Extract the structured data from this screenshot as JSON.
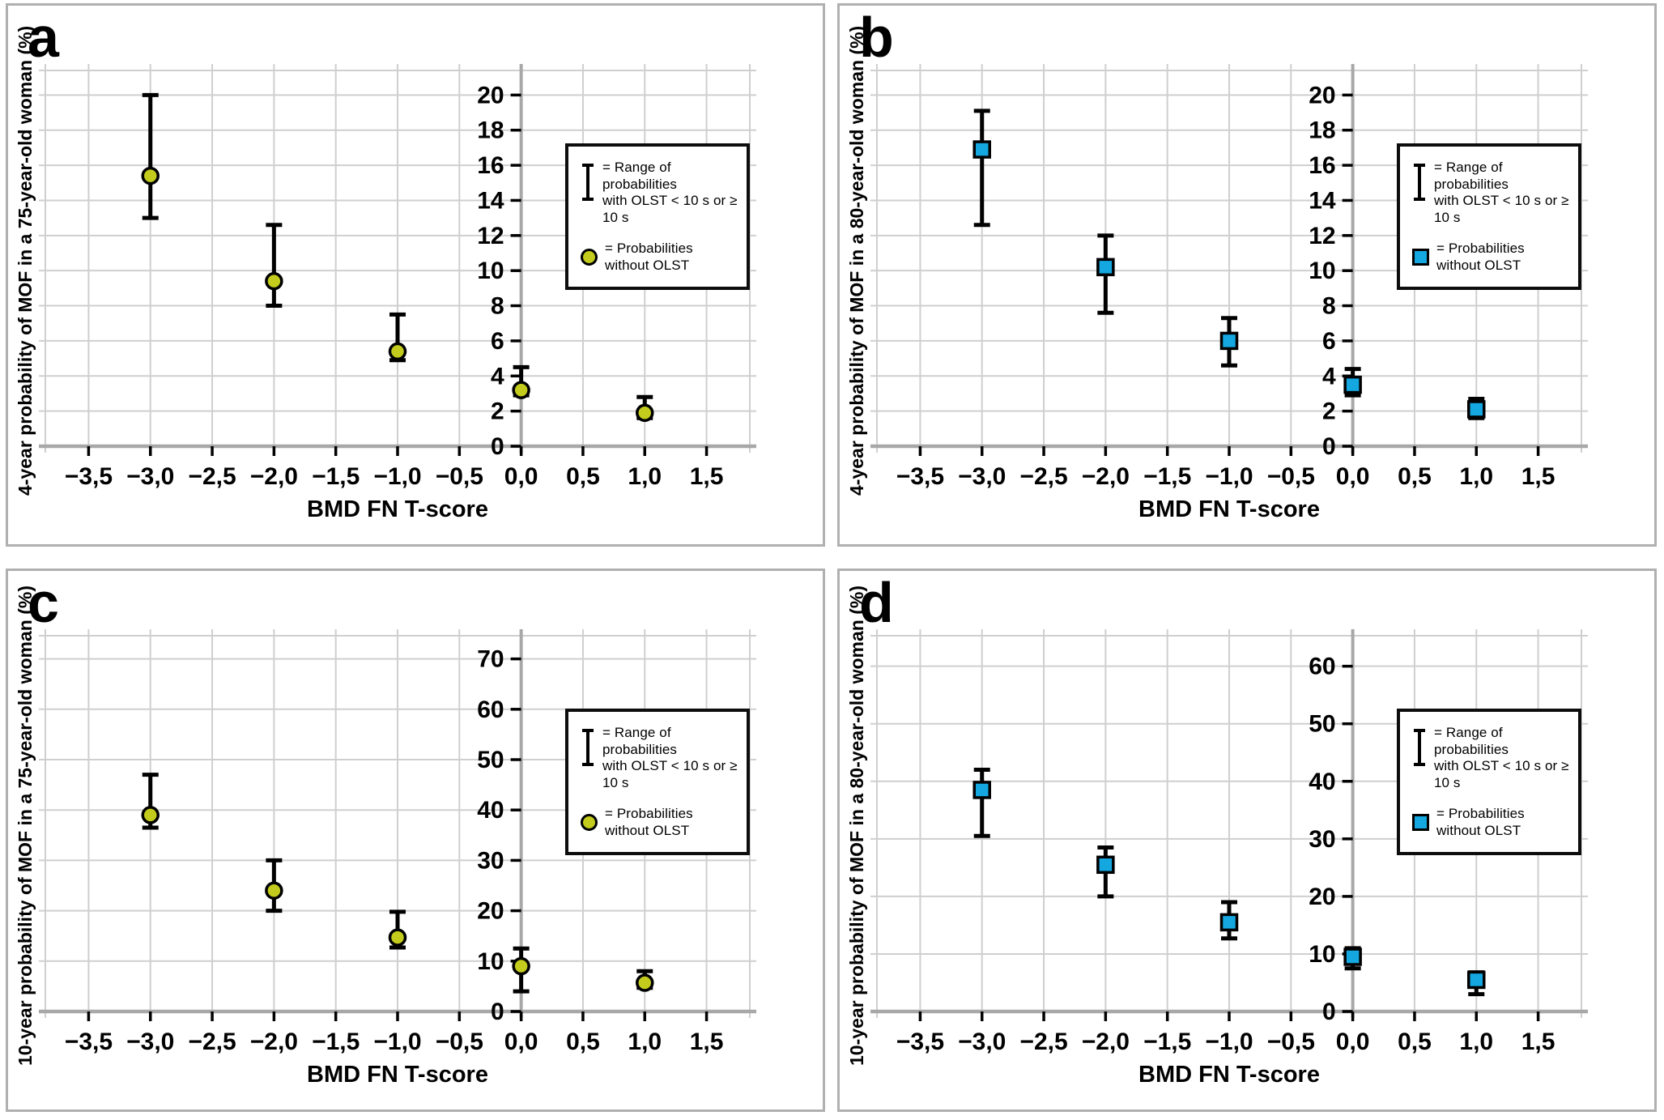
{
  "figure": {
    "xlabel": "BMD FN T-score",
    "x_tick_labels": [
      "−3,5",
      "−3,0",
      "−2,5",
      "−2,0",
      "−1,5",
      "−1,0",
      "−0,5",
      "0,0",
      "0,5",
      "1,0",
      "1,5"
    ],
    "x_tick_values": [
      -3.5,
      -3.0,
      -2.5,
      -2.0,
      -1.5,
      -1.0,
      -0.5,
      0.0,
      0.5,
      1.0,
      1.5
    ],
    "x_range": [
      -3.85,
      1.85
    ],
    "grid": "on",
    "legend_position": "upper-right-inside",
    "legend": {
      "range_label_line1": "= Range of probabilities",
      "range_label_line2": "with OLST < 10 s or ≥ 10 s",
      "marker_label": "= Probabilities without OLST"
    },
    "colors": {
      "olive": "#c3cc1c",
      "blue": "#14a7e0",
      "grid": "#cfcfcf",
      "axis": "#a8a8a8",
      "panel_border": "#b0b0b0",
      "text": "#000000"
    }
  },
  "chart_data": [
    {
      "type": "scatter",
      "letter": "a",
      "ylabel": "4-year probability of MOF in a 75-year-old woman (%)",
      "xlabel": "BMD FN T-score",
      "marker": "circle",
      "marker_color_key": "olive",
      "x": [
        -3.0,
        -2.0,
        -1.0,
        0.0,
        1.0
      ],
      "y": [
        15.4,
        9.4,
        5.4,
        3.2,
        1.9
      ],
      "y_low": [
        13.0,
        8.0,
        4.9,
        2.9,
        1.6
      ],
      "y_high": [
        20.0,
        12.6,
        7.5,
        4.5,
        2.8
      ],
      "yticks": [
        0,
        2,
        4,
        6,
        8,
        10,
        12,
        14,
        16,
        18,
        20
      ],
      "ylim": [
        0,
        21.4
      ]
    },
    {
      "type": "scatter",
      "letter": "b",
      "ylabel": "4-year probability of MOF in a 80-year-old woman (%)",
      "xlabel": "BMD FN T-score",
      "marker": "square",
      "marker_color_key": "blue",
      "x": [
        -3.0,
        -2.0,
        -1.0,
        0.0,
        1.0
      ],
      "y": [
        16.9,
        10.2,
        6.0,
        3.5,
        2.1
      ],
      "y_low": [
        12.6,
        7.6,
        4.6,
        2.9,
        1.6
      ],
      "y_high": [
        19.1,
        12.0,
        7.3,
        4.4,
        2.7
      ],
      "yticks": [
        0,
        2,
        4,
        6,
        8,
        10,
        12,
        14,
        16,
        18,
        20
      ],
      "ylim": [
        0,
        21.4
      ]
    },
    {
      "type": "scatter",
      "letter": "c",
      "ylabel": "10-year probability of MOF in a 75-year-old woman (%)",
      "xlabel": "BMD FN T-score",
      "marker": "circle",
      "marker_color_key": "olive",
      "x": [
        -3.0,
        -2.0,
        -1.0,
        0.0,
        1.0
      ],
      "y": [
        39.0,
        24.0,
        14.7,
        9.0,
        5.7
      ],
      "y_low": [
        36.5,
        20.0,
        12.7,
        4.0,
        4.7
      ],
      "y_high": [
        47.0,
        30.0,
        19.8,
        12.5,
        8.0
      ],
      "yticks": [
        0,
        10,
        20,
        30,
        40,
        50,
        60,
        70
      ],
      "ylim": [
        0,
        74.6
      ]
    },
    {
      "type": "scatter",
      "letter": "d",
      "ylabel": "10-year probability of MOF in a 80-year-old woman (%)",
      "xlabel": "BMD FN T-score",
      "marker": "square",
      "marker_color_key": "blue",
      "x": [
        -3.0,
        -2.0,
        -1.0,
        0.0,
        1.0
      ],
      "y": [
        38.5,
        25.5,
        15.5,
        9.5,
        5.5
      ],
      "y_low": [
        30.5,
        20.0,
        12.7,
        7.5,
        3.0
      ],
      "y_high": [
        42.0,
        28.5,
        19.0,
        11.0,
        6.8
      ],
      "yticks": [
        0,
        10,
        20,
        30,
        40,
        50,
        60
      ],
      "ylim": [
        0,
        65.3
      ]
    }
  ]
}
